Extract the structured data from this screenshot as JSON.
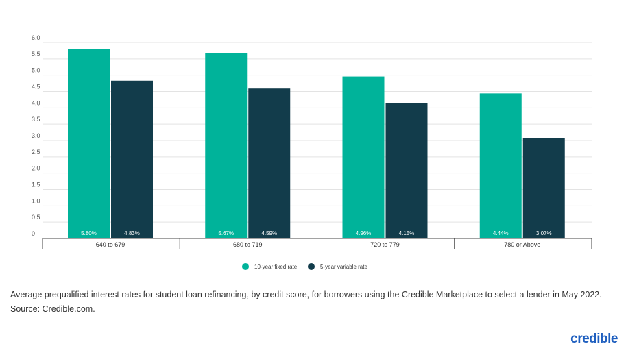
{
  "chart_data": {
    "type": "bar",
    "categories": [
      "640 to 679",
      "680 to 719",
      "720 to 779",
      "780 or Above"
    ],
    "series": [
      {
        "name": "10-year fixed rate",
        "color": "#00b39a",
        "values": [
          5.8,
          5.67,
          4.96,
          4.44
        ],
        "labels": [
          "5.80%",
          "5.67%",
          "4.96%",
          "4.44%"
        ]
      },
      {
        "name": "5-year variable rate",
        "color": "#123c4b",
        "values": [
          4.83,
          4.59,
          4.15,
          3.07
        ],
        "labels": [
          "4.83%",
          "4.59%",
          "4.15%",
          "3.07%"
        ]
      }
    ],
    "yticks": [
      "0",
      "0.5",
      "1.0",
      "1.5",
      "2.0",
      "2.5",
      "3.0",
      "3.5",
      "4.0",
      "4.5",
      "5.0",
      "5.5",
      "6.0"
    ],
    "ylim": [
      0,
      6.0
    ],
    "grid": true,
    "legend": "bottom-center",
    "title": "",
    "xlabel": "",
    "ylabel": ""
  },
  "caption": "Average prequalified interest rates for student loan refinancing, by credit score, for borrowers using the Credible Marketplace to select a lender in May 2022. Source: Credible.com.",
  "brand": {
    "logo_text": "credible",
    "color": "#1f5fbf"
  }
}
